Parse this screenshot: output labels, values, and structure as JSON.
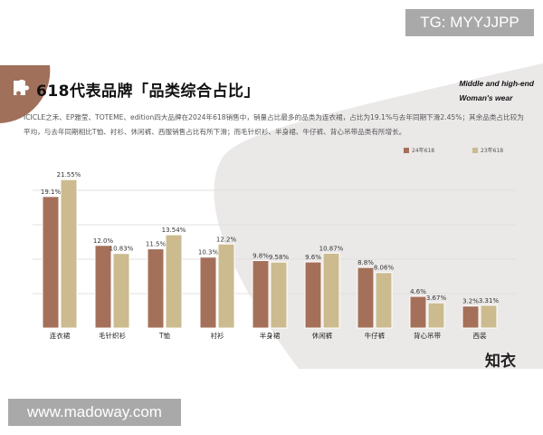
{
  "header": {
    "title": "618代表品牌「品类综合占比」",
    "subtitle_line1": "Middle and high-end",
    "subtitle_line2": "Woman's wear",
    "description": "ICICLE之禾、EP雅莹、TOTEME、edition四大品牌在2024年618销售中，销量占比最多的品类为连衣裙，占比为19.1%与去年同期下滑2.45%；其余品类占比较为平均，与去年同期相比T恤、衬衫、休闲裤、西服销售占比有所下滑；而毛针织衫、半身裙、牛仔裤、背心吊带品类有所增长。"
  },
  "logo": "知衣",
  "watermarks": {
    "top": "TG: MYYJJPP",
    "bottom": "www.madoway.com"
  },
  "colors": {
    "series_2024": "#a5705a",
    "series_2023": "#cbbb8f",
    "accent": "#a0705a",
    "bg_gray": "#ebe8e8"
  },
  "chart_data": {
    "type": "bar",
    "categories": [
      "连衣裙",
      "毛针织衫",
      "T恤",
      "衬衫",
      "半身裙",
      "休闲裤",
      "牛仔裤",
      "背心吊带",
      "西装"
    ],
    "series": [
      {
        "name": "24年618",
        "values": [
          19.1,
          12.0,
          11.5,
          10.3,
          9.8,
          9.6,
          8.8,
          4.6,
          3.2
        ],
        "labels": [
          "19.1%",
          "12.0%",
          "11.5%",
          "10.3%",
          "9.8%",
          "9.6%",
          "8.8%",
          "4.6%",
          "3.2%"
        ]
      },
      {
        "name": "23年618",
        "values": [
          21.55,
          10.83,
          13.54,
          12.2,
          9.58,
          10.87,
          8.06,
          3.67,
          3.31
        ],
        "labels": [
          "21.55%",
          "10.83%",
          "13.54%",
          "12.2%",
          "9.58%",
          "10.87%",
          "8.06%",
          "3.67%",
          "3.31%"
        ]
      }
    ],
    "ylim": [
      0,
      25
    ],
    "gridlines": [
      5,
      10,
      15,
      20
    ],
    "grid": true,
    "legend": "top-right"
  }
}
